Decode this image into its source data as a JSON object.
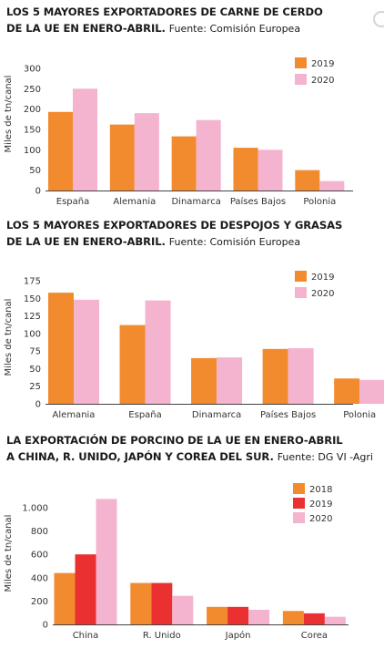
{
  "colors": {
    "y2018": "#f28a2e",
    "y2019": "#f28a2e",
    "y2019_red": "#ea3030",
    "y2020": "#f4b3cf",
    "axis": "#444444"
  },
  "charts": [
    {
      "title_bold_1": "LOS 5 MAYORES EXPORTADORES DE CARNE DE CERDO",
      "title_bold_2": "DE LA UE EN ENERO-ABRIL.",
      "source": "Fuente: Comisión Europea"
    },
    {
      "title_bold_1": "LOS 5 MAYORES EXPORTADORES DE DESPOJOS Y GRASAS",
      "title_bold_2": "DE LA UE EN ENERO-ABRIL.",
      "source": "Fuente: Comisión Europea"
    },
    {
      "title_bold_1": "LA EXPORTACIÓN DE PORCINO DE LA UE EN ENERO-ABRIL",
      "title_bold_2": "A CHINA, R. UNIDO, JAPÓN Y COREA DEL SUR.",
      "source": "Fuente: DG VI -Agri"
    }
  ],
  "chart_data": [
    {
      "type": "bar",
      "title": "LOS 5 MAYORES EXPORTADORES DE CARNE DE CERDO DE LA UE EN ENERO-ABRIL.",
      "categories": [
        "España",
        "Alemania",
        "Dinamarca",
        "Países Bajos",
        "Polonia"
      ],
      "series": [
        {
          "name": "2019",
          "values": [
            193,
            162,
            133,
            105,
            50
          ]
        },
        {
          "name": "2020",
          "values": [
            250,
            190,
            173,
            100,
            23
          ]
        }
      ],
      "ylabel": "Miles de tn/canal",
      "yticks": [
        0,
        50,
        100,
        150,
        200,
        250,
        300
      ],
      "ylim": [
        0,
        300
      ],
      "legend": "top-right",
      "grid": false
    },
    {
      "type": "bar",
      "title": "LOS 5 MAYORES EXPORTADORES DE DESPOJOS Y GRASAS DE LA UE EN ENERO-ABRIL.",
      "categories": [
        "Alemania",
        "España",
        "Dinamarca",
        "Países Bajos",
        "Polonia"
      ],
      "series": [
        {
          "name": "2019",
          "values": [
            158,
            112,
            65,
            78,
            36
          ]
        },
        {
          "name": "2020",
          "values": [
            148,
            147,
            66,
            79,
            34
          ]
        }
      ],
      "ylabel": "Miles de tn/canal",
      "yticks": [
        0,
        25,
        50,
        75,
        100,
        125,
        150,
        175
      ],
      "ylim": [
        0,
        175
      ],
      "legend": "top-right",
      "grid": false
    },
    {
      "type": "bar",
      "title": "LA EXPORTACIÓN DE PORCINO DE LA UE EN ENERO-ABRIL A CHINA, R. UNIDO, JAPÓN Y COREA DEL SUR.",
      "categories": [
        "China",
        "R. Unido",
        "Japón",
        "Corea"
      ],
      "series": [
        {
          "name": "2018",
          "values": [
            440,
            355,
            150,
            115
          ]
        },
        {
          "name": "2019",
          "values": [
            600,
            355,
            150,
            95
          ]
        },
        {
          "name": "2020",
          "values": [
            1075,
            245,
            125,
            65
          ]
        }
      ],
      "ylabel": "Miles de tn/canal",
      "yticks": [
        0,
        200,
        400,
        600,
        800,
        1000
      ],
      "ytick_labels": [
        "0",
        "200",
        "400",
        "600",
        "800",
        "1.000"
      ],
      "ylim": [
        0,
        1100
      ],
      "legend": "top-right",
      "grid": false
    }
  ]
}
